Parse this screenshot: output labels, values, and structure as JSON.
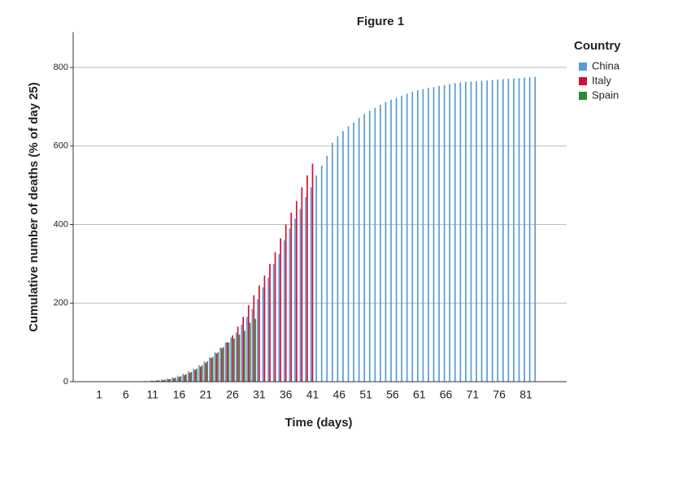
{
  "chart_data": {
    "type": "bar",
    "title": "Figure 1",
    "x_label": "Time (days)",
    "y_label": "Cumulative number of deaths (% of day 25)",
    "legend_title": "Country",
    "legend": "right",
    "grid": true,
    "categories": [
      "1",
      null,
      null,
      null,
      null,
      "6",
      null,
      null,
      null,
      null,
      "11",
      null,
      null,
      null,
      null,
      "16",
      null,
      null,
      null,
      null,
      "21",
      null,
      null,
      null,
      null,
      "26",
      null,
      null,
      null,
      null,
      "31",
      null,
      null,
      null,
      null,
      "36",
      null,
      null,
      null,
      null,
      "41",
      null,
      null,
      null,
      null,
      "46",
      null,
      null,
      null,
      null,
      "51",
      null,
      null,
      null,
      null,
      "56",
      null,
      null,
      null,
      null,
      "61",
      null,
      null,
      null,
      null,
      "66",
      null,
      null,
      null,
      null,
      "71",
      null,
      null,
      null,
      null,
      "76",
      null,
      null,
      null,
      null,
      "81",
      null,
      null
    ],
    "series": [
      {
        "name": "China",
        "color": "#5b9bd5",
        "values": [
          0,
          0,
          0,
          0,
          0,
          0,
          0,
          1,
          1,
          2,
          3,
          4,
          6,
          8,
          11,
          15,
          20,
          26,
          33,
          42,
          52,
          62,
          75,
          87,
          100,
          112,
          125,
          145,
          165,
          185,
          210,
          240,
          265,
          300,
          325,
          360,
          390,
          415,
          440,
          470,
          495,
          525,
          550,
          575,
          608,
          625,
          638,
          650,
          660,
          672,
          682,
          690,
          697,
          705,
          712,
          718,
          723,
          728,
          733,
          738,
          742,
          745,
          748,
          750,
          753,
          755,
          758,
          760,
          762,
          763,
          764,
          765,
          766,
          767,
          768,
          769,
          770,
          771,
          772,
          773,
          774,
          775,
          776
        ]
      },
      {
        "name": "Italy",
        "color": "#d0103a",
        "values": [
          0,
          0,
          0,
          0,
          0,
          0,
          0,
          0,
          0,
          1,
          2,
          3,
          4,
          6,
          9,
          12,
          17,
          23,
          30,
          38,
          48,
          60,
          72,
          85,
          100,
          118,
          140,
          165,
          195,
          220,
          245,
          270,
          300,
          330,
          365,
          400,
          430,
          460,
          495,
          525,
          555,
          null,
          null,
          null,
          null,
          null,
          null,
          null,
          null,
          null,
          null,
          null,
          null,
          null,
          null,
          null,
          null,
          null,
          null,
          null,
          null,
          null,
          null,
          null,
          null,
          null,
          null,
          null,
          null,
          null,
          null,
          null,
          null,
          null,
          null,
          null,
          null,
          null,
          null,
          null,
          null,
          null,
          null
        ]
      },
      {
        "name": "Spain",
        "color": "#2e8b37",
        "values": [
          0,
          0,
          0,
          0,
          0,
          0,
          0,
          0,
          0,
          1,
          2,
          3,
          5,
          7,
          10,
          14,
          19,
          25,
          33,
          42,
          52,
          63,
          75,
          88,
          100,
          110,
          120,
          130,
          150,
          160,
          null,
          null,
          null,
          null,
          null,
          null,
          null,
          null,
          null,
          null,
          null,
          null,
          null,
          null,
          null,
          null,
          null,
          null,
          null,
          null,
          null,
          null,
          null,
          null,
          null,
          null,
          null,
          null,
          null,
          null,
          null,
          null,
          null,
          null,
          null,
          null,
          null,
          null,
          null,
          null,
          null,
          null,
          null,
          null,
          null,
          null,
          null,
          null,
          null,
          null,
          null,
          null,
          null
        ]
      }
    ],
    "ylim": [
      0,
      890
    ],
    "yticks": [
      0,
      200,
      400,
      600,
      800
    ]
  }
}
